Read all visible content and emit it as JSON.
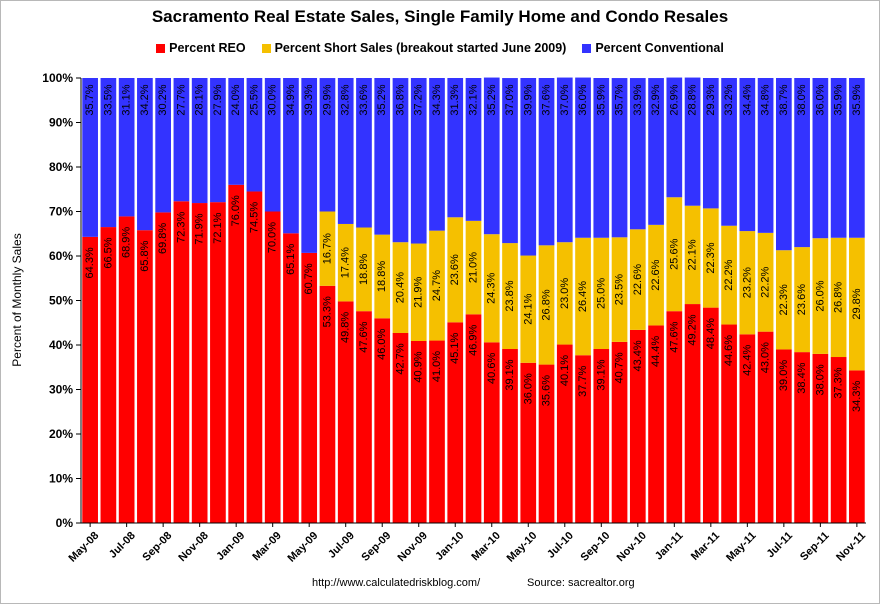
{
  "title": "Sacramento Real Estate Sales, Single Family Home and Condo Resales",
  "ylabel": "Percent of Monthly Sales",
  "footer_url": "http://www.calculatedriskblog.com/",
  "footer_source": "Source:  sacrealtor.org",
  "colors": {
    "reo": "#ff0000",
    "short": "#f5c000",
    "conventional": "#3333ff"
  },
  "chart_data": {
    "type": "bar",
    "stacked": true,
    "ylim": [
      0,
      100
    ],
    "yticks": [
      "0%",
      "10%",
      "20%",
      "30%",
      "40%",
      "50%",
      "60%",
      "70%",
      "80%",
      "90%",
      "100%"
    ],
    "categories": [
      "May-08",
      "Jun-08",
      "Jul-08",
      "Aug-08",
      "Sep-08",
      "Oct-08",
      "Nov-08",
      "Dec-08",
      "Jan-09",
      "Feb-09",
      "Mar-09",
      "Apr-09",
      "May-09",
      "Jun-09",
      "Jul-09",
      "Aug-09",
      "Sep-09",
      "Oct-09",
      "Nov-09",
      "Dec-09",
      "Jan-10",
      "Feb-10",
      "Mar-10",
      "Apr-10",
      "May-10",
      "Jun-10",
      "Jul-10",
      "Aug-10",
      "Sep-10",
      "Oct-10",
      "Nov-10",
      "Dec-10",
      "Jan-11",
      "Feb-11",
      "Mar-11",
      "Apr-11",
      "May-11",
      "Jun-11",
      "Jul-11",
      "Aug-11",
      "Sep-11",
      "Oct-11",
      "Nov-11"
    ],
    "xtick_labels": [
      "May-08",
      "Jul-08",
      "Sep-08",
      "Nov-08",
      "Jan-09",
      "Mar-09",
      "May-09",
      "Jul-09",
      "Sep-09",
      "Nov-09",
      "Jan-10",
      "Mar-10",
      "May-10",
      "Jul-10",
      "Sep-10",
      "Nov-10",
      "Jan-11",
      "Mar-11",
      "May-11",
      "Jul-11",
      "Sep-11",
      "Nov-11"
    ],
    "series": [
      {
        "name": "Percent REO",
        "values": [
          64.3,
          66.5,
          68.9,
          65.8,
          69.8,
          72.3,
          71.9,
          72.1,
          76.0,
          74.5,
          70.0,
          65.1,
          60.7,
          53.3,
          49.8,
          47.6,
          46.0,
          42.7,
          40.9,
          41.0,
          45.1,
          46.9,
          40.6,
          39.1,
          36.0,
          35.6,
          40.1,
          37.7,
          39.1,
          40.7,
          43.4,
          44.4,
          47.6,
          49.2,
          48.4,
          44.6,
          42.4,
          43.0,
          39.0,
          38.4,
          38.0,
          37.3,
          34.3
        ],
        "labels": [
          "64.3%",
          "66.5%",
          "68.9%",
          "65.8%",
          "69.8%",
          "72.3%",
          "71.9%",
          "72.1%",
          "76.0%",
          "74.5%",
          "70.0%",
          "65.1%",
          "60.7%",
          "53.3%",
          "49.8%",
          "47.6%",
          "46.0%",
          "42.7%",
          "40.9%",
          "41.0%",
          "45.1%",
          "46.9%",
          "40.6%",
          "39.1%",
          "36.0%",
          "35.6%",
          "40.1%",
          "37.7%",
          "39.1%",
          "40.7%",
          "43.4%",
          "44.4%",
          "47.6%",
          "49.2%",
          "48.4%",
          "44.6%",
          "42.4%",
          "43.0%",
          "39.0%",
          "38.4%",
          "38.0%",
          "37.3%",
          "34.3%"
        ]
      },
      {
        "name": "Percent Short Sales (breakout started June 2009)",
        "values": [
          0,
          0,
          0,
          0,
          0,
          0,
          0,
          0,
          0,
          0,
          0,
          0,
          0,
          16.7,
          17.4,
          18.8,
          18.8,
          20.4,
          21.9,
          24.7,
          23.6,
          21.0,
          24.3,
          23.8,
          24.1,
          26.8,
          23.0,
          26.4,
          25.0,
          23.5,
          22.6,
          22.6,
          25.6,
          22.1,
          22.3,
          22.2,
          23.2,
          22.2,
          22.3,
          23.6,
          26.0,
          26.8,
          29.8
        ],
        "labels": [
          "",
          "",
          "",
          "",
          "",
          "",
          "",
          "",
          "",
          "",
          "",
          "",
          "",
          "16.7%",
          "17.4%",
          "18.8%",
          "18.8%",
          "20.4%",
          "21.9%",
          "24.7%",
          "23.6%",
          "21.0%",
          "24.3%",
          "23.8%",
          "24.1%",
          "26.8%",
          "23.0%",
          "26.4%",
          "25.0%",
          "23.5%",
          "22.6%",
          "22.6%",
          "25.6%",
          "22.1%",
          "22.3%",
          "22.2%",
          "23.2%",
          "22.2%",
          "22.3%",
          "23.6%",
          "26.0%",
          "26.8%",
          "29.8%"
        ]
      },
      {
        "name": "Percent Conventional",
        "values": [
          35.7,
          33.5,
          31.1,
          34.2,
          30.2,
          27.7,
          28.1,
          27.9,
          24.0,
          25.5,
          30.0,
          34.9,
          39.3,
          29.9,
          32.8,
          33.6,
          35.2,
          36.8,
          37.2,
          34.3,
          31.3,
          32.1,
          35.2,
          37.0,
          39.9,
          37.6,
          37.0,
          36.0,
          35.9,
          35.7,
          33.9,
          32.9,
          26.9,
          28.8,
          29.3,
          33.2,
          34.4,
          34.8,
          38.7,
          38.0,
          36.0,
          35.9,
          35.9
        ],
        "labels": [
          "35.7%",
          "33.5%",
          "31.1%",
          "34.2%",
          "30.2%",
          "27.7%",
          "28.1%",
          "27.9%",
          "24.0%",
          "25.5%",
          "30.0%",
          "34.9%",
          "39.3%",
          "29.9%",
          "32.8%",
          "33.6%",
          "35.2%",
          "36.8%",
          "37.2%",
          "34.3%",
          "31.3%",
          "32.1%",
          "35.2%",
          "37.0%",
          "39.9%",
          "37.6%",
          "37.0%",
          "36.0%",
          "35.9%",
          "35.7%",
          "33.9%",
          "32.9%",
          "26.9%",
          "28.8%",
          "29.3%",
          "33.2%",
          "34.4%",
          "34.8%",
          "38.7%",
          "38.0%",
          "36.0%",
          "35.9%",
          "35.9%"
        ]
      }
    ]
  }
}
